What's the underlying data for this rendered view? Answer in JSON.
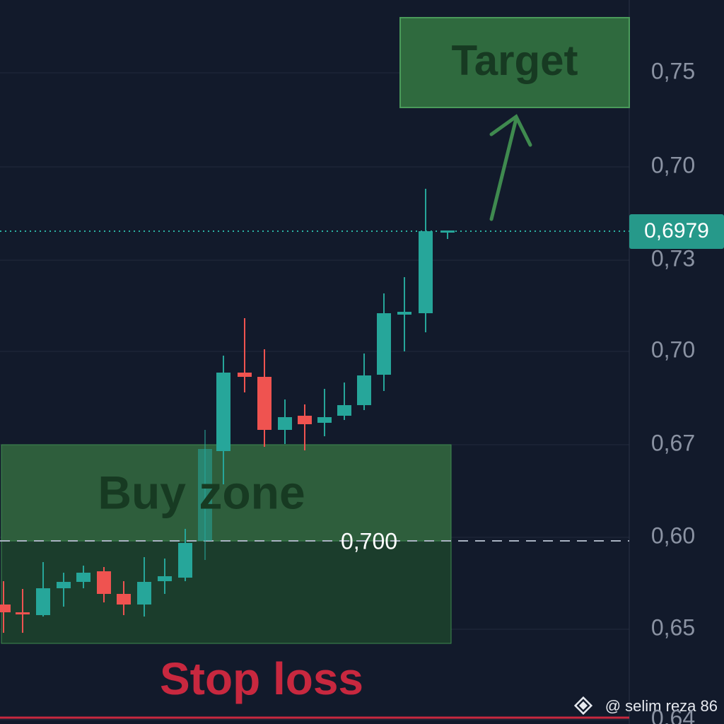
{
  "labels": {
    "target": "Target",
    "buy_zone": "Buy zone",
    "stop_loss": "Stop loss",
    "level": "0,700",
    "price": "0,6979",
    "watermark": "@ selim reza 86"
  },
  "price_axis": [
    "0,75",
    "0,70",
    "0,73",
    "0,70",
    "0,67",
    "0,60",
    "0,65",
    "0,64"
  ]
}
